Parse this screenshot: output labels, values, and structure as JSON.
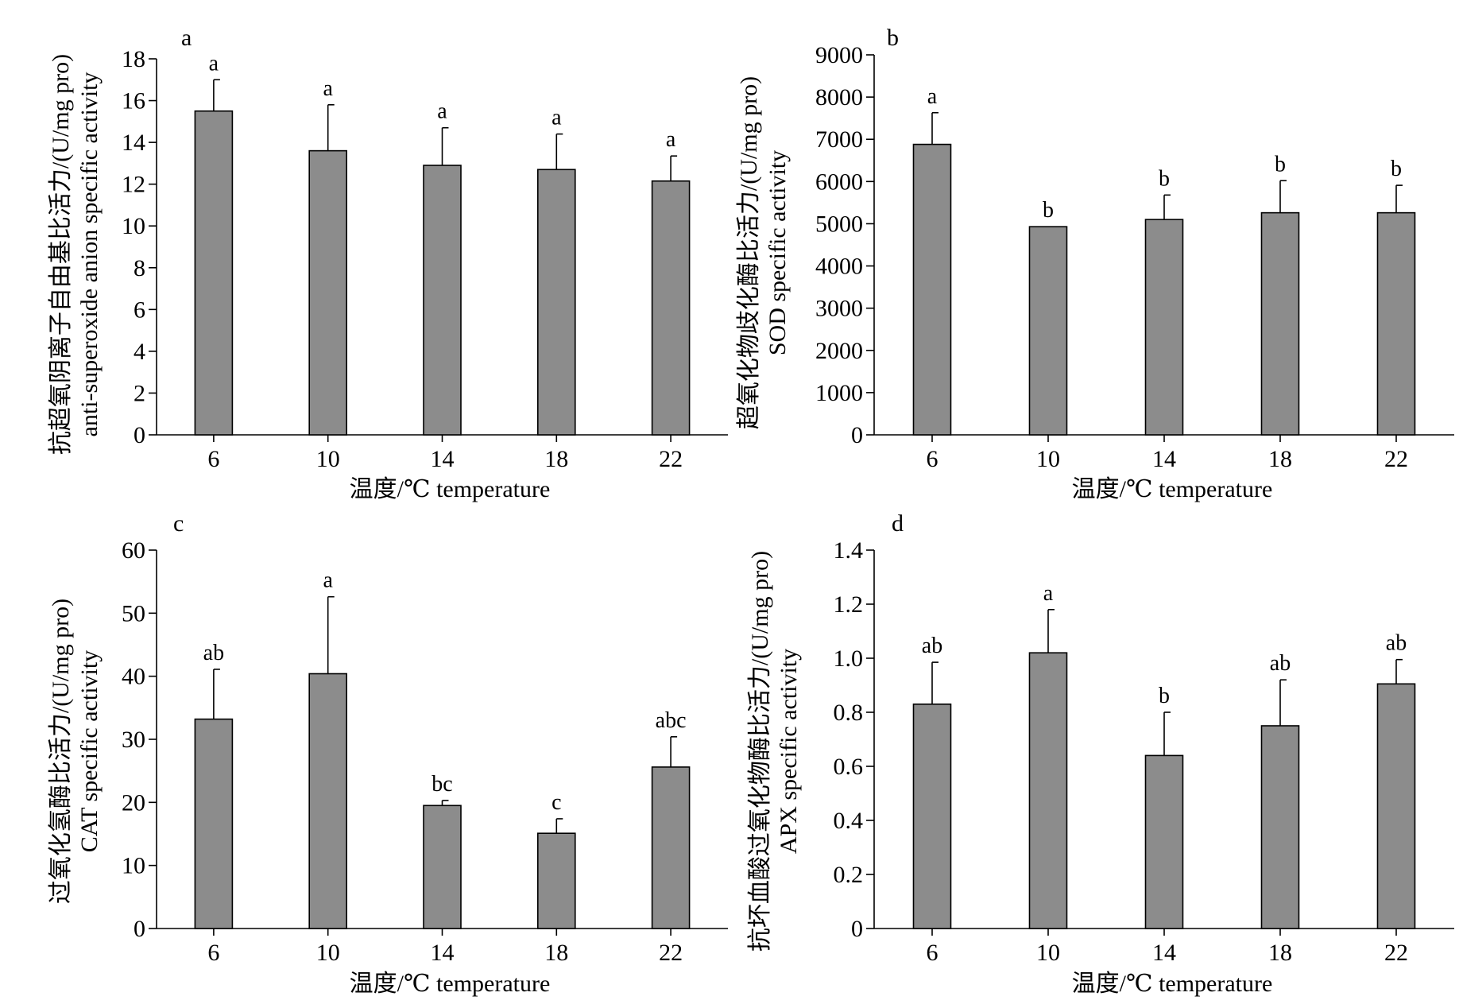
{
  "chart_data": [
    {
      "type": "bar",
      "panel": "a",
      "categories": [
        "6",
        "10",
        "14",
        "18",
        "22"
      ],
      "values": [
        15.5,
        13.6,
        12.9,
        12.7,
        12.15
      ],
      "errors": [
        1.5,
        2.2,
        1.8,
        1.7,
        1.2
      ],
      "significance": [
        "a",
        "a",
        "a",
        "a",
        "a"
      ],
      "ylim": [
        0,
        18
      ],
      "yticks": [
        0,
        2,
        4,
        6,
        8,
        10,
        12,
        14,
        16,
        18
      ],
      "ytick_labels": [
        "0",
        "2",
        "4",
        "6",
        "8",
        "10",
        "12",
        "14",
        "16",
        "18"
      ],
      "ylabel_zh": "抗超氧阴离子自由基比活力/(U/mg pro)",
      "ylabel_en": "anti-superoxide anion specific activity",
      "xlabel": "温度/℃  temperature",
      "bar_color": "#8c8c8c"
    },
    {
      "type": "bar",
      "panel": "b",
      "categories": [
        "6",
        "10",
        "14",
        "18",
        "22"
      ],
      "values": [
        6880,
        4930,
        5100,
        5260,
        5260
      ],
      "errors": [
        750,
        0,
        580,
        760,
        650
      ],
      "significance": [
        "a",
        "b",
        "b",
        "b",
        "b"
      ],
      "ylim": [
        0,
        9000
      ],
      "yticks": [
        0,
        1000,
        2000,
        3000,
        4000,
        5000,
        6000,
        7000,
        8000,
        9000
      ],
      "ytick_labels": [
        "0",
        "1000",
        "2000",
        "3000",
        "4000",
        "5000",
        "6000",
        "7000",
        "8000",
        "9000"
      ],
      "ylabel_zh": "超氧化物歧化酶比活力/(U/mg pro)",
      "ylabel_en": "SOD specific activity",
      "xlabel": "温度/℃  temperature",
      "bar_color": "#8c8c8c"
    },
    {
      "type": "bar",
      "panel": "c",
      "categories": [
        "6",
        "10",
        "14",
        "18",
        "22"
      ],
      "values": [
        33.2,
        40.4,
        19.5,
        15.1,
        25.6
      ],
      "errors": [
        7.9,
        12.2,
        0.8,
        2.3,
        4.8
      ],
      "significance": [
        "ab",
        "a",
        "bc",
        "c",
        "abc"
      ],
      "ylim": [
        0,
        60
      ],
      "yticks": [
        0,
        10,
        20,
        30,
        40,
        50,
        60
      ],
      "ytick_labels": [
        "0",
        "10",
        "20",
        "30",
        "40",
        "50",
        "60"
      ],
      "ylabel_zh": "过氧化氢酶比活力/(U/mg pro)",
      "ylabel_en": "CAT specific activity",
      "xlabel": "温度/℃  temperature",
      "bar_color": "#8c8c8c"
    },
    {
      "type": "bar",
      "panel": "d",
      "categories": [
        "6",
        "10",
        "14",
        "18",
        "22"
      ],
      "values": [
        0.83,
        1.02,
        0.64,
        0.75,
        0.905
      ],
      "errors": [
        0.155,
        0.16,
        0.16,
        0.17,
        0.09
      ],
      "significance": [
        "ab",
        "a",
        "b",
        "ab",
        "ab"
      ],
      "ylim": [
        0,
        1.4
      ],
      "yticks": [
        0,
        0.2,
        0.4,
        0.6,
        0.8,
        1.0,
        1.2,
        1.4
      ],
      "ytick_labels": [
        "0",
        "0.2",
        "0.4",
        "0.6",
        "0.8",
        "1.0",
        "1.2",
        "1.4"
      ],
      "ylabel_zh": "抗坏血酸过氧化物酶比活力/(U/mg pro)",
      "ylabel_en": "APX specific activity",
      "xlabel": "温度/℃  temperature",
      "bar_color": "#8c8c8c"
    }
  ]
}
